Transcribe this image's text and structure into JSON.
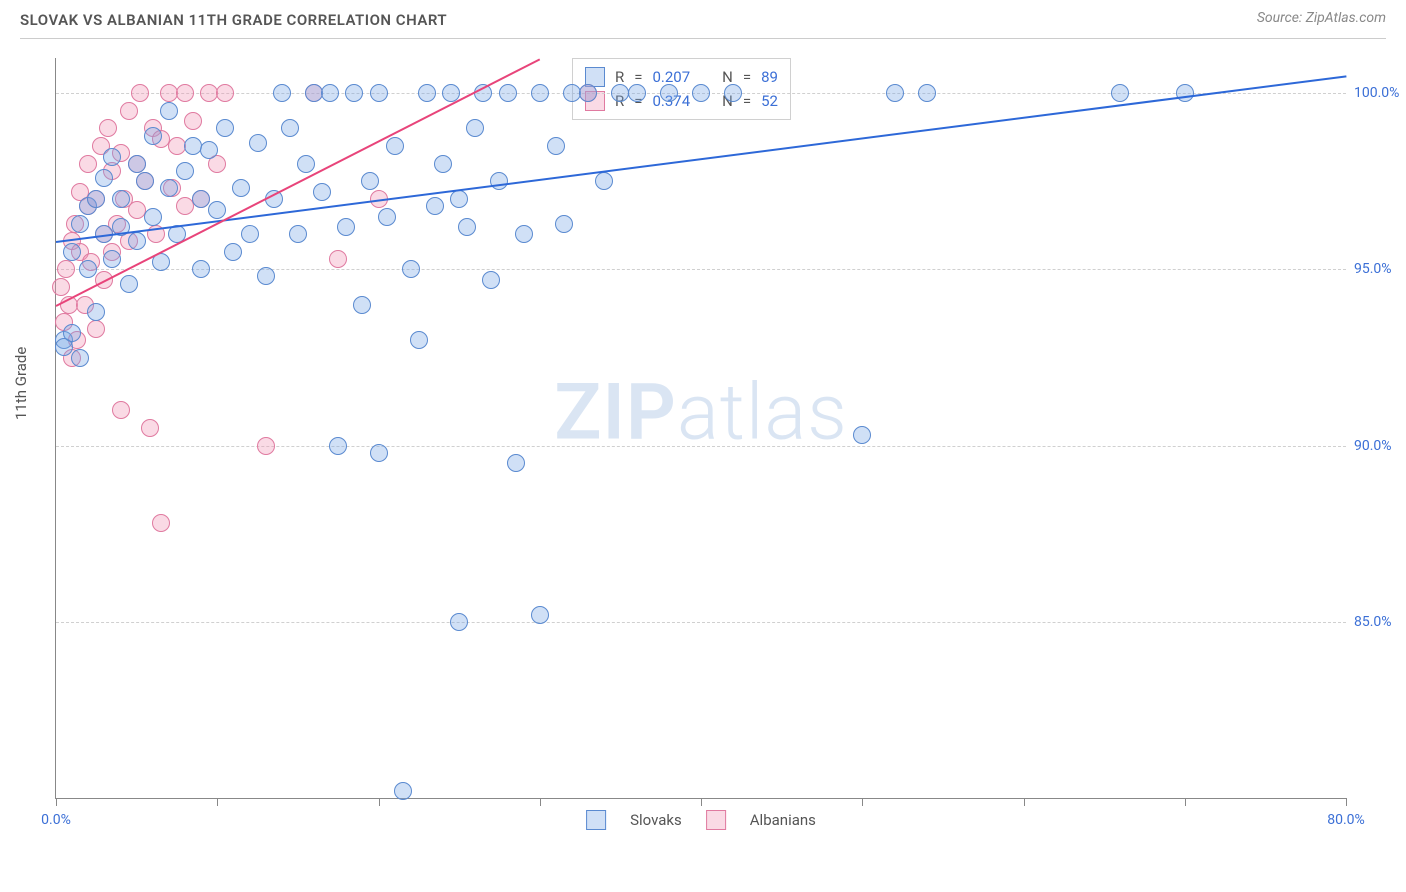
{
  "title": "SLOVAK VS ALBANIAN 11TH GRADE CORRELATION CHART",
  "source_label": "Source: ZipAtlas.com",
  "ylabel": "11th Grade",
  "watermark": {
    "bold": "ZIP",
    "light": "atlas"
  },
  "chart": {
    "type": "scatter",
    "background_color": "#ffffff",
    "grid_color": "#d0d0d0",
    "axis_color": "#888888",
    "xlim": [
      0,
      80
    ],
    "ylim": [
      80,
      101
    ],
    "xtick_positions": [
      0,
      10,
      20,
      30,
      40,
      50,
      60,
      70,
      80
    ],
    "xtick_labels_shown": {
      "0": "0.0%",
      "80": "80.0%"
    },
    "ytick_positions": [
      85,
      90,
      95,
      100
    ],
    "ytick_labels": {
      "85": "85.0%",
      "90": "90.0%",
      "95": "95.0%",
      "100": "100.0%"
    },
    "ytick_label_color": "#3b6fd6",
    "xtick_label_color": "#3b6fd6",
    "label_fontsize": 14,
    "title_fontsize": 15
  },
  "series": {
    "slovaks": {
      "label": "Slovaks",
      "fill": "rgba(120, 165, 230, 0.35)",
      "stroke": "#5a8ad0",
      "line_color": "#2d68d8",
      "marker_radius": 9,
      "R": "0.207",
      "N": "89",
      "trend": {
        "x1": 0,
        "y1": 95.8,
        "x2": 80,
        "y2": 100.5
      },
      "points": [
        [
          0.5,
          93.0
        ],
        [
          0.5,
          92.8
        ],
        [
          1.0,
          93.2
        ],
        [
          1.0,
          95.5
        ],
        [
          1.5,
          96.3
        ],
        [
          1.5,
          92.5
        ],
        [
          2.0,
          96.8
        ],
        [
          2.0,
          95.0
        ],
        [
          2.5,
          97.0
        ],
        [
          2.5,
          93.8
        ],
        [
          3.0,
          96.0
        ],
        [
          3.0,
          97.6
        ],
        [
          3.5,
          98.2
        ],
        [
          3.5,
          95.3
        ],
        [
          4.0,
          97.0
        ],
        [
          4.0,
          96.2
        ],
        [
          4.5,
          94.6
        ],
        [
          5.0,
          98.0
        ],
        [
          5.0,
          95.8
        ],
        [
          5.5,
          97.5
        ],
        [
          6.0,
          96.5
        ],
        [
          6.0,
          98.8
        ],
        [
          6.5,
          95.2
        ],
        [
          7.0,
          97.3
        ],
        [
          7.0,
          99.5
        ],
        [
          7.5,
          96.0
        ],
        [
          8.0,
          97.8
        ],
        [
          8.5,
          98.5
        ],
        [
          9.0,
          95.0
        ],
        [
          9.0,
          97.0
        ],
        [
          9.5,
          98.4
        ],
        [
          10.0,
          96.7
        ],
        [
          10.5,
          99.0
        ],
        [
          11.0,
          95.5
        ],
        [
          11.5,
          97.3
        ],
        [
          12.0,
          96.0
        ],
        [
          12.5,
          98.6
        ],
        [
          13.0,
          94.8
        ],
        [
          13.5,
          97.0
        ],
        [
          14.0,
          100.0
        ],
        [
          14.5,
          99.0
        ],
        [
          15.0,
          96.0
        ],
        [
          15.5,
          98.0
        ],
        [
          16.0,
          100.0
        ],
        [
          16.5,
          97.2
        ],
        [
          17.0,
          100.0
        ],
        [
          17.5,
          90.0
        ],
        [
          18.0,
          96.2
        ],
        [
          18.5,
          100.0
        ],
        [
          19.0,
          94.0
        ],
        [
          19.5,
          97.5
        ],
        [
          20.0,
          100.0
        ],
        [
          20.0,
          89.8
        ],
        [
          20.5,
          96.5
        ],
        [
          21.0,
          98.5
        ],
        [
          21.5,
          80.2
        ],
        [
          22.0,
          95.0
        ],
        [
          22.5,
          93.0
        ],
        [
          23.0,
          100.0
        ],
        [
          23.5,
          96.8
        ],
        [
          24.0,
          98.0
        ],
        [
          24.5,
          100.0
        ],
        [
          25.0,
          97.0
        ],
        [
          25.0,
          85.0
        ],
        [
          25.5,
          96.2
        ],
        [
          26.0,
          99.0
        ],
        [
          26.5,
          100.0
        ],
        [
          27.0,
          94.7
        ],
        [
          27.5,
          97.5
        ],
        [
          28.0,
          100.0
        ],
        [
          28.5,
          89.5
        ],
        [
          29.0,
          96.0
        ],
        [
          30.0,
          100.0
        ],
        [
          30.0,
          85.2
        ],
        [
          31.0,
          98.5
        ],
        [
          31.5,
          96.3
        ],
        [
          32.0,
          100.0
        ],
        [
          33.0,
          100.0
        ],
        [
          34.0,
          97.5
        ],
        [
          35.0,
          100.0
        ],
        [
          36.0,
          100.0
        ],
        [
          38.0,
          100.0
        ],
        [
          40.0,
          100.0
        ],
        [
          42.0,
          100.0
        ],
        [
          50.0,
          90.3
        ],
        [
          52.0,
          100.0
        ],
        [
          54.0,
          100.0
        ],
        [
          66.0,
          100.0
        ],
        [
          70.0,
          100.0
        ]
      ]
    },
    "albanians": {
      "label": "Albanians",
      "fill": "rgba(240, 150, 180, 0.35)",
      "stroke": "#e07aa0",
      "line_color": "#e8447a",
      "marker_radius": 9,
      "R": "0.374",
      "N": "52",
      "trend": {
        "x1": 0,
        "y1": 94.0,
        "x2": 30,
        "y2": 101.0
      },
      "points": [
        [
          0.3,
          94.5
        ],
        [
          0.5,
          93.5
        ],
        [
          0.6,
          95.0
        ],
        [
          0.8,
          94.0
        ],
        [
          1.0,
          95.8
        ],
        [
          1.0,
          92.5
        ],
        [
          1.2,
          96.3
        ],
        [
          1.3,
          93.0
        ],
        [
          1.5,
          97.2
        ],
        [
          1.5,
          95.5
        ],
        [
          1.8,
          94.0
        ],
        [
          2.0,
          96.8
        ],
        [
          2.0,
          98.0
        ],
        [
          2.2,
          95.2
        ],
        [
          2.5,
          97.0
        ],
        [
          2.5,
          93.3
        ],
        [
          2.8,
          98.5
        ],
        [
          3.0,
          96.0
        ],
        [
          3.0,
          94.7
        ],
        [
          3.2,
          99.0
        ],
        [
          3.5,
          97.8
        ],
        [
          3.5,
          95.5
        ],
        [
          3.8,
          96.3
        ],
        [
          4.0,
          98.3
        ],
        [
          4.0,
          91.0
        ],
        [
          4.2,
          97.0
        ],
        [
          4.5,
          99.5
        ],
        [
          4.5,
          95.8
        ],
        [
          5.0,
          96.7
        ],
        [
          5.0,
          98.0
        ],
        [
          5.2,
          100.0
        ],
        [
          5.5,
          97.5
        ],
        [
          5.8,
          90.5
        ],
        [
          6.0,
          99.0
        ],
        [
          6.2,
          96.0
        ],
        [
          6.5,
          98.7
        ],
        [
          6.5,
          87.8
        ],
        [
          7.0,
          100.0
        ],
        [
          7.2,
          97.3
        ],
        [
          7.5,
          98.5
        ],
        [
          8.0,
          96.8
        ],
        [
          8.0,
          100.0
        ],
        [
          8.5,
          99.2
        ],
        [
          9.0,
          97.0
        ],
        [
          9.5,
          100.0
        ],
        [
          10.0,
          98.0
        ],
        [
          10.5,
          100.0
        ],
        [
          13.0,
          90.0
        ],
        [
          16.0,
          100.0
        ],
        [
          17.5,
          95.3
        ],
        [
          20.0,
          97.0
        ],
        [
          33.0,
          100.0
        ]
      ]
    }
  },
  "stats_box": {
    "R_label": "R",
    "N_label": "N",
    "eq": "="
  },
  "bottom_legend": {
    "s1": "Slovaks",
    "s2": "Albanians"
  }
}
